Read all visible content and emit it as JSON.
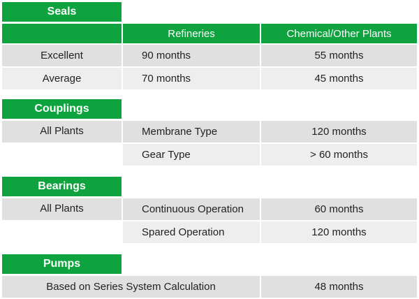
{
  "seals": {
    "title": "Seals",
    "headers": [
      "Refineries",
      "Chemical/Other Plants"
    ],
    "rows": [
      {
        "label": "Excellent",
        "refineries": "90 months",
        "chemical": "55 months"
      },
      {
        "label": "Average",
        "refineries": "70 months",
        "chemical": "45 months"
      }
    ]
  },
  "couplings": {
    "title": "Couplings",
    "scope": "All Plants",
    "rows": [
      {
        "type": "Membrane Type",
        "value": "120 months"
      },
      {
        "type": "Gear Type",
        "value": "> 60 months"
      }
    ]
  },
  "bearings": {
    "title": "Bearings",
    "scope": "All Plants",
    "rows": [
      {
        "type": "Continuous Operation",
        "value": "60 months"
      },
      {
        "type": "Spared Operation",
        "value": "120 months"
      }
    ]
  },
  "pumps": {
    "title": "Pumps",
    "basis": "Based on Series System Calculation",
    "value": "48 months"
  },
  "colors": {
    "header_green": "#0fa33f",
    "row_dark": "#e0e0e0",
    "row_light": "#eeeeee"
  }
}
